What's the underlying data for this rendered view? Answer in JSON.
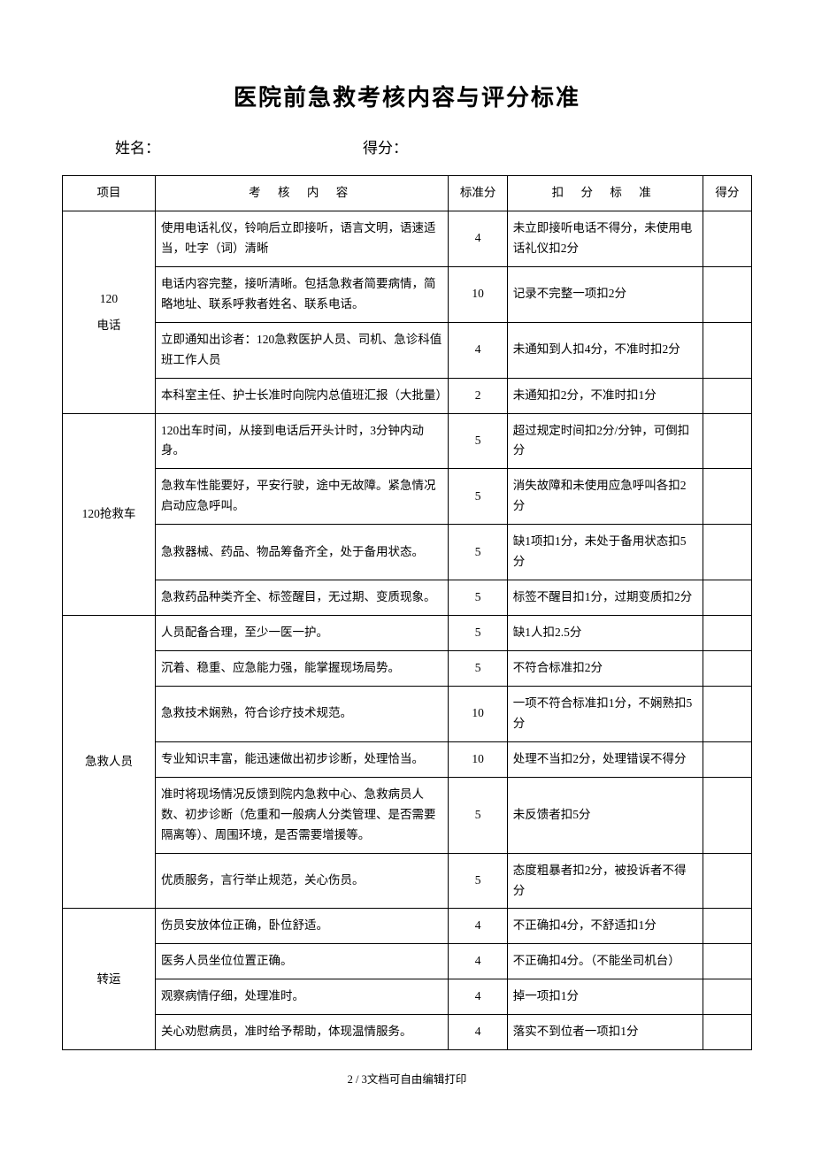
{
  "title": "医院前急救考核内容与评分标准",
  "meta": {
    "name_label": "姓名：",
    "score_label": "得分："
  },
  "thead": {
    "category": "项目",
    "content": "考 核 内 容",
    "std": "标准分",
    "deduction": "扣 分 标 准",
    "score": "得分"
  },
  "sections": [
    {
      "category": "120\n电话",
      "rows": [
        {
          "content": "使用电话礼仪，铃响后立即接听，语言文明，语速适当，吐字（词）清晰",
          "std": 4,
          "deduction": "未立即接听电话不得分，未使用电话礼仪扣2分"
        },
        {
          "content": "电话内容完整，接听清晰。包括急救者简要病情，简略地址、联系呼救者姓名、联系电话。",
          "std": 10,
          "deduction": "记录不完整一项扣2分"
        },
        {
          "content": "立即通知出诊者：120急救医护人员、司机、急诊科值班工作人员",
          "std": 4,
          "deduction": "未通知到人扣4分，不准时扣2分"
        },
        {
          "content": "本科室主任、护士长准时向院内总值班汇报（大批量）",
          "std": 2,
          "deduction": "未通知扣2分，不准时扣1分"
        }
      ]
    },
    {
      "category": "120抢救车",
      "rows": [
        {
          "content": "120出车时间，从接到电话后开头计时，3分钟内动身。",
          "std": 5,
          "deduction": "超过规定时间扣2分/分钟，可倒扣分"
        },
        {
          "content": "急救车性能要好，平安行驶，途中无故障。紧急情况启动应急呼叫。",
          "std": 5,
          "deduction": "消失故障和未使用应急呼叫各扣2分"
        },
        {
          "content": "急救器械、药品、物品筹备齐全，处于备用状态。",
          "std": 5,
          "deduction": "缺1项扣1分，未处于备用状态扣5分"
        },
        {
          "content": "急救药品种类齐全、标签醒目，无过期、变质现象。",
          "std": 5,
          "deduction": "标签不醒目扣1分，过期变质扣2分"
        }
      ]
    },
    {
      "category": "急救人员",
      "rows": [
        {
          "content": "人员配备合理，至少一医一护。",
          "std": 5,
          "deduction": "缺1人扣2.5分"
        },
        {
          "content": "沉着、稳重、应急能力强，能掌握现场局势。",
          "std": 5,
          "deduction": "不符合标准扣2分"
        },
        {
          "content": "急救技术娴熟，符合诊疗技术规范。",
          "std": 10,
          "deduction": "一项不符合标准扣1分，不娴熟扣5分"
        },
        {
          "content": "专业知识丰富，能迅速做出初步诊断，处理恰当。",
          "std": 10,
          "deduction": "处理不当扣2分，处理错误不得分"
        },
        {
          "content": "准时将现场情况反馈到院内急救中心、急救病员人数、初步诊断（危重和一般病人分类管理、是否需要隔离等）、周围环境，是否需要增援等。",
          "std": 5,
          "deduction": "未反馈者扣5分"
        },
        {
          "content": "优质服务，言行举止规范，关心伤员。",
          "std": 5,
          "deduction": "态度粗暴者扣2分，被投诉者不得分"
        }
      ]
    },
    {
      "category": "转运",
      "rows": [
        {
          "content": "伤员安放体位正确，卧位舒适。",
          "std": 4,
          "deduction": "不正确扣4分，不舒适扣1分"
        },
        {
          "content": "医务人员坐位位置正确。",
          "std": 4,
          "deduction": "不正确扣4分。（不能坐司机台）"
        },
        {
          "content": "观察病情仔细，处理准时。",
          "std": 4,
          "deduction": "掉一项扣1分"
        },
        {
          "content": "关心劝慰病员，准时给予帮助，体现温情服务。",
          "std": 4,
          "deduction": "落实不到位者一项扣1分"
        }
      ]
    }
  ],
  "footer": "2 / 3文档可自由编辑打印"
}
